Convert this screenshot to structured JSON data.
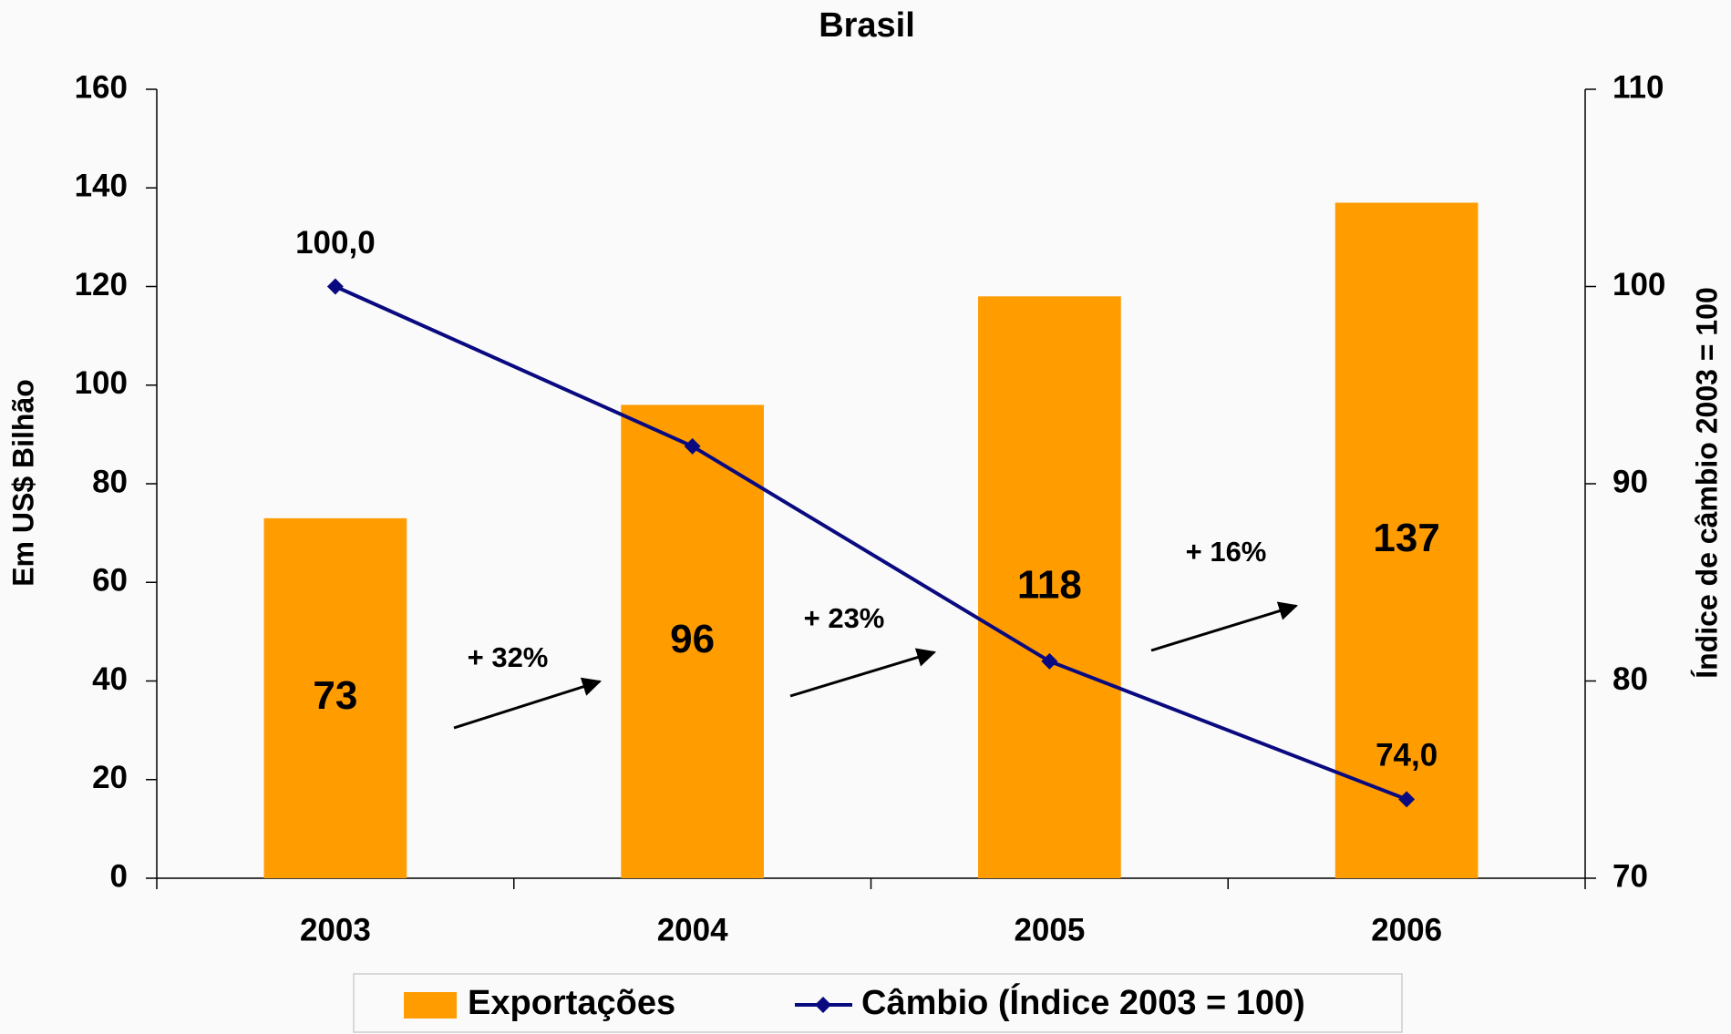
{
  "chart_data": {
    "type": "bar-line",
    "title": "Brasil",
    "y_label": "Em US$ Bilhão",
    "y2_label": "Índice de câmbio 2003 = 100",
    "categories": [
      "2003",
      "2004",
      "2005",
      "2006"
    ],
    "ylim": [
      0,
      160
    ],
    "yticks": [
      0,
      20,
      40,
      60,
      80,
      100,
      120,
      140,
      160
    ],
    "y2lim": [
      70,
      110
    ],
    "y2ticks": [
      70,
      80,
      90,
      100,
      110
    ],
    "series": [
      {
        "name": "Exportações",
        "type": "bar",
        "color": "#ff9c00",
        "values": [
          73,
          96,
          118,
          137
        ]
      },
      {
        "name": "Câmbio (Índice 2003 = 100)",
        "type": "line",
        "axis": "y2",
        "color": "#0a0a80",
        "values": [
          100.0,
          91.9,
          81.0,
          74.0
        ],
        "value_labels": [
          "100,0",
          null,
          null,
          "74,0"
        ]
      }
    ],
    "annotations": [
      "+ 32%",
      "+ 23%",
      "+ 16%"
    ]
  }
}
